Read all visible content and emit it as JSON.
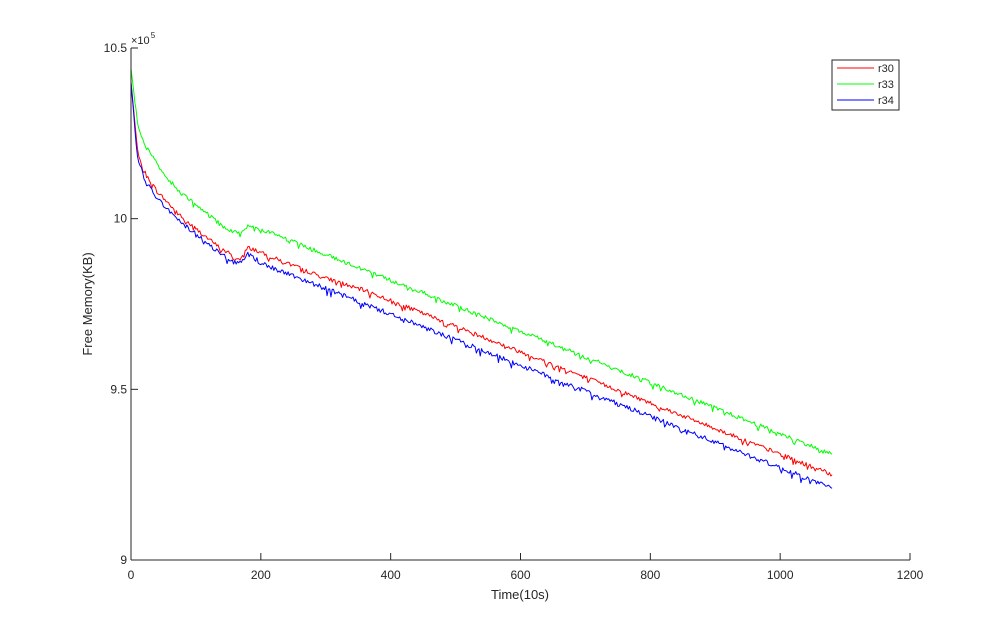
{
  "chart_data": {
    "type": "line",
    "xlabel": "Time(10s)",
    "ylabel": "Free Memory(KB)",
    "xlim": [
      0,
      1200
    ],
    "ylim": [
      9.0,
      10.5
    ],
    "y_scale_label": {
      "base": "×10",
      "exponent": "5"
    },
    "xticks": [
      0,
      200,
      400,
      600,
      800,
      1000,
      1200
    ],
    "yticks": [
      9,
      9.5,
      10,
      10.5
    ],
    "xtick_labels": [
      "0",
      "200",
      "400",
      "600",
      "800",
      "1000",
      "1200"
    ],
    "ytick_labels": [
      "9",
      "9.5",
      "10",
      "10.5"
    ],
    "grid": false,
    "legend_position": "top-right",
    "series": [
      {
        "name": "r30",
        "color": "#ff0000",
        "x": [
          0,
          10,
          20,
          30,
          40,
          50,
          60,
          70,
          80,
          90,
          100,
          110,
          120,
          130,
          140,
          150,
          160,
          170,
          180,
          190,
          200,
          220,
          240,
          260,
          280,
          300,
          320,
          340,
          360,
          380,
          400,
          420,
          440,
          460,
          480,
          500,
          520,
          540,
          560,
          580,
          600,
          620,
          640,
          660,
          680,
          700,
          720,
          740,
          760,
          780,
          800,
          820,
          840,
          860,
          880,
          900,
          920,
          940,
          960,
          980,
          1000,
          1020,
          1040,
          1060,
          1080
        ],
        "y": [
          10.4,
          10.2,
          10.14,
          10.11,
          10.08,
          10.06,
          10.04,
          10.02,
          10.0,
          9.985,
          9.97,
          9.955,
          9.94,
          9.925,
          9.91,
          9.9,
          9.88,
          9.885,
          9.915,
          9.91,
          9.9,
          9.885,
          9.87,
          9.855,
          9.84,
          9.825,
          9.815,
          9.8,
          9.79,
          9.775,
          9.76,
          9.745,
          9.73,
          9.715,
          9.7,
          9.685,
          9.67,
          9.655,
          9.64,
          9.625,
          9.61,
          9.595,
          9.58,
          9.565,
          9.55,
          9.535,
          9.52,
          9.505,
          9.49,
          9.475,
          9.46,
          9.445,
          9.43,
          9.415,
          9.4,
          9.385,
          9.37,
          9.355,
          9.34,
          9.325,
          9.31,
          9.295,
          9.28,
          9.265,
          9.25
        ]
      },
      {
        "name": "r33",
        "color": "#00ff00",
        "x": [
          0,
          10,
          20,
          30,
          40,
          50,
          60,
          70,
          80,
          90,
          100,
          110,
          120,
          130,
          140,
          150,
          160,
          170,
          180,
          190,
          200,
          220,
          240,
          260,
          280,
          300,
          320,
          340,
          360,
          380,
          400,
          420,
          440,
          460,
          480,
          500,
          520,
          540,
          560,
          580,
          600,
          620,
          640,
          660,
          680,
          700,
          720,
          740,
          760,
          780,
          800,
          820,
          840,
          860,
          880,
          900,
          920,
          940,
          960,
          980,
          1000,
          1020,
          1040,
          1060,
          1080
        ],
        "y": [
          10.44,
          10.28,
          10.22,
          10.19,
          10.16,
          10.13,
          10.11,
          10.09,
          10.07,
          10.055,
          10.04,
          10.025,
          10.01,
          9.995,
          9.98,
          9.97,
          9.96,
          9.96,
          9.98,
          9.975,
          9.97,
          9.955,
          9.94,
          9.925,
          9.91,
          9.895,
          9.88,
          9.865,
          9.85,
          9.835,
          9.82,
          9.805,
          9.79,
          9.775,
          9.76,
          9.745,
          9.73,
          9.715,
          9.7,
          9.685,
          9.67,
          9.655,
          9.64,
          9.625,
          9.61,
          9.595,
          9.58,
          9.565,
          9.55,
          9.535,
          9.52,
          9.505,
          9.49,
          9.475,
          9.46,
          9.445,
          9.43,
          9.415,
          9.4,
          9.385,
          9.37,
          9.355,
          9.34,
          9.325,
          9.31
        ]
      },
      {
        "name": "r34",
        "color": "#0000ff",
        "x": [
          0,
          10,
          20,
          30,
          40,
          50,
          60,
          70,
          80,
          90,
          100,
          110,
          120,
          130,
          140,
          150,
          160,
          170,
          180,
          190,
          200,
          220,
          240,
          260,
          280,
          300,
          320,
          340,
          360,
          380,
          400,
          420,
          440,
          460,
          480,
          500,
          520,
          540,
          560,
          580,
          600,
          620,
          640,
          660,
          680,
          700,
          720,
          740,
          760,
          780,
          800,
          820,
          840,
          860,
          880,
          900,
          920,
          940,
          960,
          980,
          1000,
          1020,
          1040,
          1060,
          1080
        ],
        "y": [
          10.4,
          10.18,
          10.12,
          10.09,
          10.06,
          10.04,
          10.02,
          10.0,
          9.985,
          9.97,
          9.955,
          9.94,
          9.925,
          9.91,
          9.895,
          9.88,
          9.87,
          9.875,
          9.895,
          9.885,
          9.87,
          9.855,
          9.84,
          9.825,
          9.81,
          9.795,
          9.78,
          9.765,
          9.75,
          9.735,
          9.72,
          9.705,
          9.69,
          9.675,
          9.66,
          9.645,
          9.63,
          9.615,
          9.6,
          9.585,
          9.57,
          9.555,
          9.54,
          9.525,
          9.51,
          9.495,
          9.48,
          9.465,
          9.45,
          9.435,
          9.42,
          9.405,
          9.39,
          9.375,
          9.36,
          9.345,
          9.33,
          9.315,
          9.3,
          9.285,
          9.27,
          9.255,
          9.24,
          9.225,
          9.21
        ]
      }
    ]
  }
}
